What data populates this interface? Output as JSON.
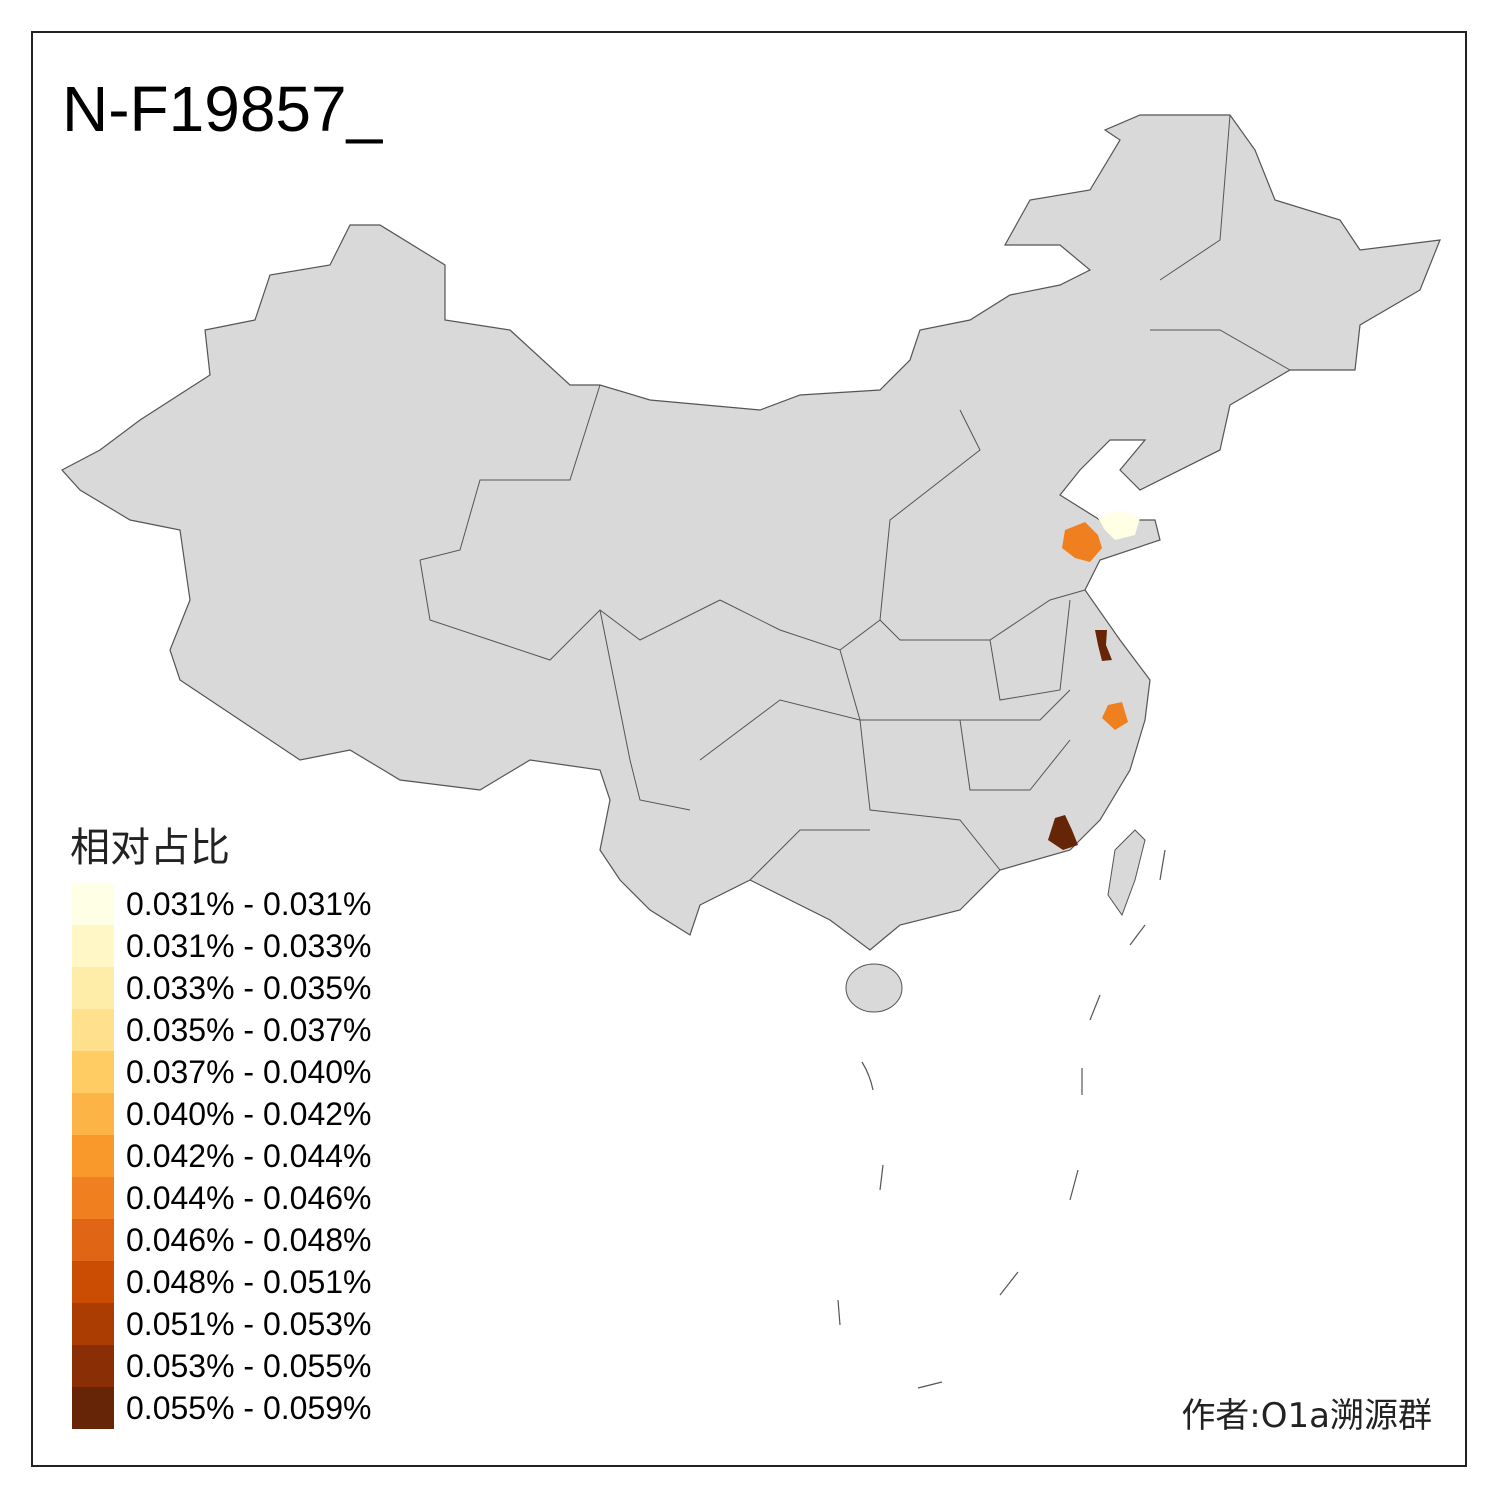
{
  "title": "N-F19857_",
  "legend": {
    "title": "相对占比",
    "items": [
      {
        "label": "0.031% - 0.031%",
        "color": "#FFFFE5"
      },
      {
        "label": "0.031% - 0.033%",
        "color": "#FFF8C6"
      },
      {
        "label": "0.033% - 0.035%",
        "color": "#FEEDA8"
      },
      {
        "label": "0.035% - 0.037%",
        "color": "#FEE08D"
      },
      {
        "label": "0.037% - 0.040%",
        "color": "#FECC62"
      },
      {
        "label": "0.040% - 0.042%",
        "color": "#FDB446"
      },
      {
        "label": "0.042% - 0.044%",
        "color": "#FA992B"
      },
      {
        "label": "0.044% - 0.046%",
        "color": "#F0801F"
      },
      {
        "label": "0.046% - 0.048%",
        "color": "#E06514"
      },
      {
        "label": "0.048% - 0.051%",
        "color": "#CB4D04"
      },
      {
        "label": "0.051% - 0.053%",
        "color": "#AB3D03"
      },
      {
        "label": "0.053% - 0.055%",
        "color": "#8A2F05"
      },
      {
        "label": "0.055% - 0.059%",
        "color": "#672507"
      }
    ]
  },
  "map": {
    "base_color": "#D9D9D9",
    "border_color": "#555555",
    "highlighted_regions": [
      {
        "region": "Shandong (west)",
        "class": "0.044% - 0.046%",
        "color": "#F0801F"
      },
      {
        "region": "Shandong (east)",
        "class": "0.031% - 0.031%",
        "color": "#FFFFE5"
      },
      {
        "region": "Jiangsu",
        "class": "0.055% - 0.059%",
        "color": "#672507"
      },
      {
        "region": "Zhejiang",
        "class": "0.044% - 0.046%",
        "color": "#F0801F"
      },
      {
        "region": "Fujian",
        "class": "0.055% - 0.059%",
        "color": "#672507"
      }
    ]
  },
  "author": "作者:O1a溯源群"
}
